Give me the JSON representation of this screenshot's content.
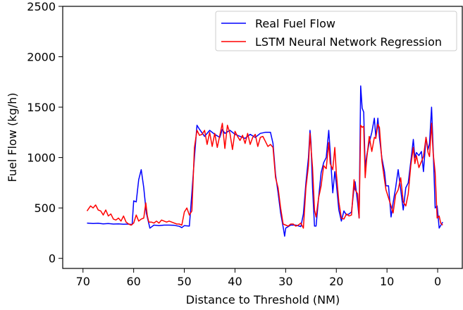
{
  "chart_data": {
    "type": "line",
    "title": "",
    "xlabel": "Distance to Threshold (NM)",
    "ylabel": "Fuel Flow (kg/h)",
    "xlim": [
      74,
      -5
    ],
    "ylim": [
      -100,
      2500
    ],
    "x_ticks": [
      70,
      60,
      50,
      40,
      30,
      20,
      10,
      0
    ],
    "y_ticks": [
      0,
      500,
      1000,
      1500,
      2000,
      2500
    ],
    "grid": false,
    "legend_position": "top-right",
    "series": [
      {
        "name": "Real Fuel Flow",
        "color": "#0000ff",
        "points": [
          [
            69.2,
            350
          ],
          [
            68,
            345
          ],
          [
            67,
            348
          ],
          [
            66,
            342
          ],
          [
            65,
            345
          ],
          [
            64,
            340
          ],
          [
            63,
            342
          ],
          [
            62,
            338
          ],
          [
            61,
            340
          ],
          [
            60.3,
            335
          ],
          [
            60,
            570
          ],
          [
            59.5,
            560
          ],
          [
            59,
            780
          ],
          [
            58.5,
            880
          ],
          [
            58,
            700
          ],
          [
            57.5,
            450
          ],
          [
            56.8,
            300
          ],
          [
            56,
            330
          ],
          [
            55,
            325
          ],
          [
            54,
            330
          ],
          [
            53,
            330
          ],
          [
            52,
            328
          ],
          [
            51,
            318
          ],
          [
            50.5,
            305
          ],
          [
            50,
            325
          ],
          [
            49,
            320
          ],
          [
            48.5,
            650
          ],
          [
            48,
            1000
          ],
          [
            47.5,
            1320
          ],
          [
            47,
            1280
          ],
          [
            46,
            1210
          ],
          [
            45,
            1270
          ],
          [
            44,
            1230
          ],
          [
            43,
            1200
          ],
          [
            42.5,
            1280
          ],
          [
            42,
            1240
          ],
          [
            41,
            1270
          ],
          [
            40,
            1230
          ],
          [
            39,
            1210
          ],
          [
            38,
            1190
          ],
          [
            37,
            1230
          ],
          [
            36,
            1200
          ],
          [
            35,
            1240
          ],
          [
            34,
            1250
          ],
          [
            33,
            1250
          ],
          [
            32.5,
            1140
          ],
          [
            32,
            830
          ],
          [
            31.5,
            650
          ],
          [
            31,
            450
          ],
          [
            30.5,
            310
          ],
          [
            30.2,
            220
          ],
          [
            30,
            300
          ],
          [
            29,
            330
          ],
          [
            28,
            330
          ],
          [
            27,
            315
          ],
          [
            26.5,
            440
          ],
          [
            26,
            750
          ],
          [
            25.5,
            1000
          ],
          [
            25.2,
            1270
          ],
          [
            25,
            1150
          ],
          [
            24.7,
            700
          ],
          [
            24.3,
            320
          ],
          [
            24,
            320
          ],
          [
            23.5,
            600
          ],
          [
            23,
            850
          ],
          [
            22.5,
            950
          ],
          [
            22,
            1000
          ],
          [
            21.5,
            1270
          ],
          [
            21.2,
            1050
          ],
          [
            20.7,
            650
          ],
          [
            20.3,
            860
          ],
          [
            20,
            740
          ],
          [
            19.5,
            480
          ],
          [
            19,
            370
          ],
          [
            18.5,
            470
          ],
          [
            18,
            430
          ],
          [
            17.5,
            440
          ],
          [
            17,
            460
          ],
          [
            16.5,
            700
          ],
          [
            16.3,
            760
          ],
          [
            15.8,
            550
          ],
          [
            15.5,
            400
          ],
          [
            15.2,
            1710
          ],
          [
            14.9,
            1490
          ],
          [
            14.6,
            1450
          ],
          [
            14.3,
            900
          ],
          [
            14,
            1020
          ],
          [
            13.5,
            1150
          ],
          [
            13,
            1250
          ],
          [
            12.5,
            1390
          ],
          [
            12.2,
            1200
          ],
          [
            11.8,
            1390
          ],
          [
            11.5,
            1200
          ],
          [
            11,
            990
          ],
          [
            10.5,
            860
          ],
          [
            10.2,
            720
          ],
          [
            9.7,
            720
          ],
          [
            9.2,
            410
          ],
          [
            8.8,
            550
          ],
          [
            8.3,
            700
          ],
          [
            7.8,
            880
          ],
          [
            7.3,
            680
          ],
          [
            6.8,
            480
          ],
          [
            6.3,
            700
          ],
          [
            5.8,
            750
          ],
          [
            5.3,
            960
          ],
          [
            4.8,
            1180
          ],
          [
            4.5,
            1000
          ],
          [
            4.2,
            1050
          ],
          [
            3.7,
            1020
          ],
          [
            3.2,
            1060
          ],
          [
            2.8,
            860
          ],
          [
            2.3,
            1200
          ],
          [
            1.9,
            1080
          ],
          [
            1.6,
            1140
          ],
          [
            1.2,
            1500
          ],
          [
            0.9,
            1100
          ],
          [
            0.5,
            500
          ],
          [
            0.1,
            520
          ],
          [
            -0.3,
            300
          ],
          [
            -1,
            360
          ]
        ]
      },
      {
        "name": "LSTM Neural Network Regression",
        "color": "#ff0000",
        "points": [
          [
            69.2,
            470
          ],
          [
            68.5,
            520
          ],
          [
            68,
            500
          ],
          [
            67.5,
            530
          ],
          [
            67,
            480
          ],
          [
            66.5,
            470
          ],
          [
            66,
            430
          ],
          [
            65.5,
            480
          ],
          [
            65,
            420
          ],
          [
            64.5,
            440
          ],
          [
            64,
            390
          ],
          [
            63.5,
            380
          ],
          [
            63,
            400
          ],
          [
            62.5,
            370
          ],
          [
            62,
            420
          ],
          [
            61.5,
            360
          ],
          [
            61,
            340
          ],
          [
            60.5,
            330
          ],
          [
            60,
            350
          ],
          [
            59.5,
            430
          ],
          [
            59,
            370
          ],
          [
            58.5,
            390
          ],
          [
            58,
            400
          ],
          [
            57.6,
            550
          ],
          [
            57.3,
            420
          ],
          [
            57,
            360
          ],
          [
            56.5,
            360
          ],
          [
            56,
            350
          ],
          [
            55.5,
            370
          ],
          [
            55,
            350
          ],
          [
            54.5,
            380
          ],
          [
            54,
            370
          ],
          [
            53.5,
            360
          ],
          [
            53,
            370
          ],
          [
            52.5,
            360
          ],
          [
            52,
            350
          ],
          [
            51.5,
            340
          ],
          [
            51,
            340
          ],
          [
            50.5,
            330
          ],
          [
            50,
            460
          ],
          [
            49.5,
            500
          ],
          [
            49,
            430
          ],
          [
            48.5,
            470
          ],
          [
            48,
            1100
          ],
          [
            47.5,
            1270
          ],
          [
            47,
            1220
          ],
          [
            46.5,
            1230
          ],
          [
            46,
            1270
          ],
          [
            45.5,
            1130
          ],
          [
            45,
            1250
          ],
          [
            44.5,
            1110
          ],
          [
            44,
            1240
          ],
          [
            43.5,
            1100
          ],
          [
            43,
            1220
          ],
          [
            42.5,
            1340
          ],
          [
            42,
            1090
          ],
          [
            41.5,
            1320
          ],
          [
            41,
            1240
          ],
          [
            40.5,
            1080
          ],
          [
            40,
            1260
          ],
          [
            39.5,
            1210
          ],
          [
            39,
            1170
          ],
          [
            38.5,
            1220
          ],
          [
            38,
            1140
          ],
          [
            37.5,
            1240
          ],
          [
            37,
            1130
          ],
          [
            36.5,
            1200
          ],
          [
            36,
            1230
          ],
          [
            35.5,
            1110
          ],
          [
            35,
            1200
          ],
          [
            34.5,
            1210
          ],
          [
            34,
            1160
          ],
          [
            33.5,
            1110
          ],
          [
            33,
            1130
          ],
          [
            32.5,
            1100
          ],
          [
            32,
            800
          ],
          [
            31.5,
            700
          ],
          [
            31,
            500
          ],
          [
            30.5,
            340
          ],
          [
            30,
            330
          ],
          [
            29.5,
            320
          ],
          [
            29,
            340
          ],
          [
            28.5,
            340
          ],
          [
            28,
            320
          ],
          [
            27.5,
            330
          ],
          [
            27,
            350
          ],
          [
            26.5,
            300
          ],
          [
            26,
            700
          ],
          [
            25.5,
            920
          ],
          [
            25.2,
            1240
          ],
          [
            25,
            1100
          ],
          [
            24.7,
            900
          ],
          [
            24.3,
            480
          ],
          [
            24,
            410
          ],
          [
            23.5,
            600
          ],
          [
            23,
            720
          ],
          [
            22.5,
            920
          ],
          [
            22,
            890
          ],
          [
            21.5,
            1150
          ],
          [
            21.2,
            940
          ],
          [
            20.7,
            880
          ],
          [
            20.3,
            1100
          ],
          [
            20,
            840
          ],
          [
            19.5,
            560
          ],
          [
            19,
            400
          ],
          [
            18.5,
            390
          ],
          [
            18,
            440
          ],
          [
            17.5,
            420
          ],
          [
            17,
            430
          ],
          [
            16.5,
            780
          ],
          [
            16.3,
            680
          ],
          [
            15.8,
            640
          ],
          [
            15.5,
            400
          ],
          [
            15.2,
            1320
          ],
          [
            14.9,
            1300
          ],
          [
            14.6,
            1310
          ],
          [
            14.3,
            800
          ],
          [
            14,
            990
          ],
          [
            13.5,
            1210
          ],
          [
            13,
            1060
          ],
          [
            12.5,
            1200
          ],
          [
            12.2,
            1190
          ],
          [
            11.8,
            1330
          ],
          [
            11.5,
            1300
          ],
          [
            11,
            960
          ],
          [
            10.5,
            780
          ],
          [
            10.2,
            680
          ],
          [
            9.7,
            600
          ],
          [
            9.2,
            520
          ],
          [
            8.8,
            450
          ],
          [
            8.3,
            630
          ],
          [
            7.8,
            680
          ],
          [
            7.3,
            800
          ],
          [
            6.8,
            560
          ],
          [
            6.3,
            520
          ],
          [
            5.8,
            640
          ],
          [
            5.3,
            920
          ],
          [
            4.8,
            1100
          ],
          [
            4.5,
            940
          ],
          [
            4.2,
            1020
          ],
          [
            3.7,
            900
          ],
          [
            3.2,
            960
          ],
          [
            2.8,
            1010
          ],
          [
            2.3,
            1200
          ],
          [
            1.9,
            1050
          ],
          [
            1.6,
            1010
          ],
          [
            1.2,
            1340
          ],
          [
            0.9,
            1050
          ],
          [
            0.5,
            850
          ],
          [
            0.1,
            400
          ],
          [
            -0.3,
            420
          ],
          [
            -0.6,
            350
          ],
          [
            -1,
            330
          ]
        ]
      }
    ]
  }
}
